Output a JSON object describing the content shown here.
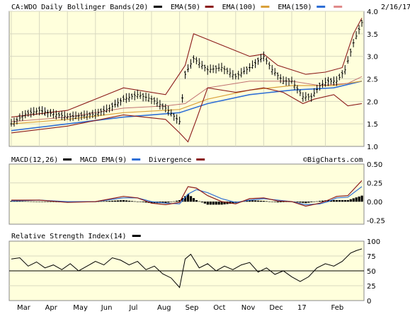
{
  "chart_data": [
    {
      "type": "ohlc",
      "panel": "price",
      "symbol_label": "CA:WDO Daily",
      "date_label": "2/16/17",
      "legend": [
        {
          "label": "Bollinger Bands(20)",
          "color": "#000000"
        },
        {
          "label": "EMA(50)",
          "color": "#8b1a1a"
        },
        {
          "label": "EMA(100)",
          "color": "#d9a03a"
        },
        {
          "label": "EMA(150)",
          "color": "#2f6fd6"
        },
        {
          "label": "",
          "color": "#e08a8a"
        }
      ],
      "ylim": [
        1.0,
        4.0
      ],
      "yticks": [
        "4.0",
        "3.5",
        "3.0",
        "2.5",
        "2.0",
        "1.5",
        "1.0"
      ],
      "x_labels": [
        "Mar",
        "Apr",
        "May",
        "Jun",
        "Jul",
        "Aug",
        "Sep",
        "Oct",
        "Nov",
        "Dec",
        "17",
        "Feb"
      ],
      "grid": true,
      "close_points": [
        [
          0,
          1.5
        ],
        [
          5,
          1.72
        ],
        [
          10,
          1.8
        ],
        [
          15,
          1.72
        ],
        [
          20,
          1.66
        ],
        [
          25,
          1.68
        ],
        [
          30,
          1.72
        ],
        [
          35,
          1.85
        ],
        [
          40,
          2.05
        ],
        [
          45,
          2.15
        ],
        [
          50,
          2.05
        ],
        [
          55,
          1.85
        ],
        [
          60,
          1.55
        ],
        [
          62,
          2.6
        ],
        [
          65,
          2.95
        ],
        [
          70,
          2.7
        ],
        [
          75,
          2.75
        ],
        [
          80,
          2.55
        ],
        [
          85,
          2.75
        ],
        [
          90,
          3.0
        ],
        [
          93,
          2.7
        ],
        [
          97,
          2.45
        ],
        [
          100,
          2.45
        ],
        [
          104,
          2.1
        ],
        [
          107,
          2.1
        ],
        [
          110,
          2.35
        ],
        [
          113,
          2.45
        ],
        [
          116,
          2.45
        ],
        [
          119,
          2.7
        ],
        [
          122,
          3.3
        ],
        [
          125,
          3.75
        ]
      ],
      "bollinger_upper": [
        [
          0,
          1.65
        ],
        [
          20,
          1.8
        ],
        [
          40,
          2.3
        ],
        [
          55,
          2.15
        ],
        [
          62,
          2.8
        ],
        [
          65,
          3.5
        ],
        [
          75,
          3.25
        ],
        [
          85,
          3.0
        ],
        [
          90,
          3.05
        ],
        [
          95,
          2.8
        ],
        [
          105,
          2.6
        ],
        [
          112,
          2.65
        ],
        [
          118,
          2.75
        ],
        [
          122,
          3.5
        ],
        [
          125,
          3.85
        ]
      ],
      "bollinger_lower": [
        [
          0,
          1.3
        ],
        [
          20,
          1.45
        ],
        [
          40,
          1.7
        ],
        [
          55,
          1.6
        ],
        [
          60,
          1.3
        ],
        [
          63,
          1.1
        ],
        [
          66,
          1.6
        ],
        [
          70,
          2.3
        ],
        [
          80,
          2.2
        ],
        [
          90,
          2.3
        ],
        [
          97,
          2.2
        ],
        [
          104,
          1.95
        ],
        [
          108,
          2.05
        ],
        [
          115,
          2.15
        ],
        [
          120,
          1.9
        ],
        [
          125,
          1.95
        ]
      ],
      "ema50": [
        [
          0,
          1.55
        ],
        [
          20,
          1.65
        ],
        [
          40,
          1.85
        ],
        [
          55,
          1.9
        ],
        [
          62,
          1.95
        ],
        [
          70,
          2.3
        ],
        [
          85,
          2.45
        ],
        [
          100,
          2.45
        ],
        [
          110,
          2.35
        ],
        [
          120,
          2.4
        ],
        [
          125,
          2.55
        ]
      ],
      "ema100": [
        [
          0,
          1.5
        ],
        [
          20,
          1.6
        ],
        [
          40,
          1.75
        ],
        [
          60,
          1.82
        ],
        [
          70,
          2.05
        ],
        [
          85,
          2.25
        ],
        [
          100,
          2.35
        ],
        [
          115,
          2.35
        ],
        [
          125,
          2.45
        ]
      ],
      "ema150": [
        [
          0,
          1.35
        ],
        [
          20,
          1.5
        ],
        [
          40,
          1.65
        ],
        [
          60,
          1.75
        ],
        [
          70,
          1.95
        ],
        [
          85,
          2.15
        ],
        [
          100,
          2.25
        ],
        [
          115,
          2.3
        ],
        [
          125,
          2.45
        ]
      ]
    },
    {
      "type": "line",
      "panel": "macd",
      "legend": [
        {
          "label": "MACD(12,26)",
          "color": "#000000"
        },
        {
          "label": "MACD EMA(9)",
          "color": "#2f6fd6"
        },
        {
          "label": "Divergence",
          "color": "#8b1a1a"
        }
      ],
      "watermark": "©BigCharts.com",
      "ylim": [
        -0.3,
        0.5
      ],
      "yticks": [
        "0.50",
        "0.25",
        "0.00",
        "-0.25"
      ],
      "macd": [
        [
          0,
          0.02
        ],
        [
          10,
          0.02
        ],
        [
          20,
          -0.01
        ],
        [
          30,
          0.0
        ],
        [
          40,
          0.07
        ],
        [
          45,
          0.05
        ],
        [
          50,
          -0.02
        ],
        [
          55,
          -0.04
        ],
        [
          60,
          -0.01
        ],
        [
          63,
          0.2
        ],
        [
          66,
          0.18
        ],
        [
          70,
          0.08
        ],
        [
          75,
          0.0
        ],
        [
          80,
          -0.03
        ],
        [
          85,
          0.04
        ],
        [
          90,
          0.05
        ],
        [
          95,
          0.01
        ],
        [
          100,
          0.0
        ],
        [
          105,
          -0.06
        ],
        [
          110,
          -0.02
        ],
        [
          113,
          0.02
        ],
        [
          116,
          0.07
        ],
        [
          120,
          0.08
        ],
        [
          125,
          0.28
        ]
      ],
      "signal": [
        [
          0,
          0.01
        ],
        [
          10,
          0.02
        ],
        [
          20,
          0.0
        ],
        [
          30,
          0.0
        ],
        [
          40,
          0.05
        ],
        [
          45,
          0.05
        ],
        [
          50,
          0.0
        ],
        [
          55,
          -0.02
        ],
        [
          60,
          -0.03
        ],
        [
          63,
          0.1
        ],
        [
          66,
          0.16
        ],
        [
          70,
          0.12
        ],
        [
          75,
          0.04
        ],
        [
          80,
          -0.01
        ],
        [
          85,
          0.02
        ],
        [
          90,
          0.04
        ],
        [
          95,
          0.02
        ],
        [
          100,
          0.0
        ],
        [
          105,
          -0.04
        ],
        [
          110,
          -0.03
        ],
        [
          113,
          0.0
        ],
        [
          116,
          0.05
        ],
        [
          120,
          0.06
        ],
        [
          125,
          0.2
        ]
      ]
    },
    {
      "type": "line",
      "panel": "rsi",
      "legend": [
        {
          "label": "Relative Strength Index(14)",
          "color": "#000000"
        }
      ],
      "ylim": [
        0,
        100
      ],
      "yticks": [
        "100",
        "75",
        "50",
        "25",
        "0"
      ],
      "rsi": [
        [
          0,
          70
        ],
        [
          3,
          72
        ],
        [
          6,
          58
        ],
        [
          9,
          65
        ],
        [
          12,
          55
        ],
        [
          15,
          60
        ],
        [
          18,
          52
        ],
        [
          21,
          62
        ],
        [
          24,
          50
        ],
        [
          27,
          58
        ],
        [
          30,
          66
        ],
        [
          33,
          60
        ],
        [
          36,
          72
        ],
        [
          39,
          68
        ],
        [
          42,
          60
        ],
        [
          45,
          66
        ],
        [
          48,
          52
        ],
        [
          51,
          58
        ],
        [
          54,
          45
        ],
        [
          57,
          38
        ],
        [
          60,
          22
        ],
        [
          62,
          70
        ],
        [
          64,
          78
        ],
        [
          67,
          55
        ],
        [
          70,
          62
        ],
        [
          73,
          50
        ],
        [
          76,
          58
        ],
        [
          79,
          52
        ],
        [
          82,
          60
        ],
        [
          85,
          64
        ],
        [
          88,
          48
        ],
        [
          91,
          55
        ],
        [
          94,
          44
        ],
        [
          97,
          50
        ],
        [
          100,
          40
        ],
        [
          103,
          32
        ],
        [
          106,
          40
        ],
        [
          109,
          55
        ],
        [
          112,
          62
        ],
        [
          115,
          58
        ],
        [
          118,
          66
        ],
        [
          121,
          80
        ],
        [
          123,
          84
        ],
        [
          125,
          87
        ]
      ]
    }
  ]
}
